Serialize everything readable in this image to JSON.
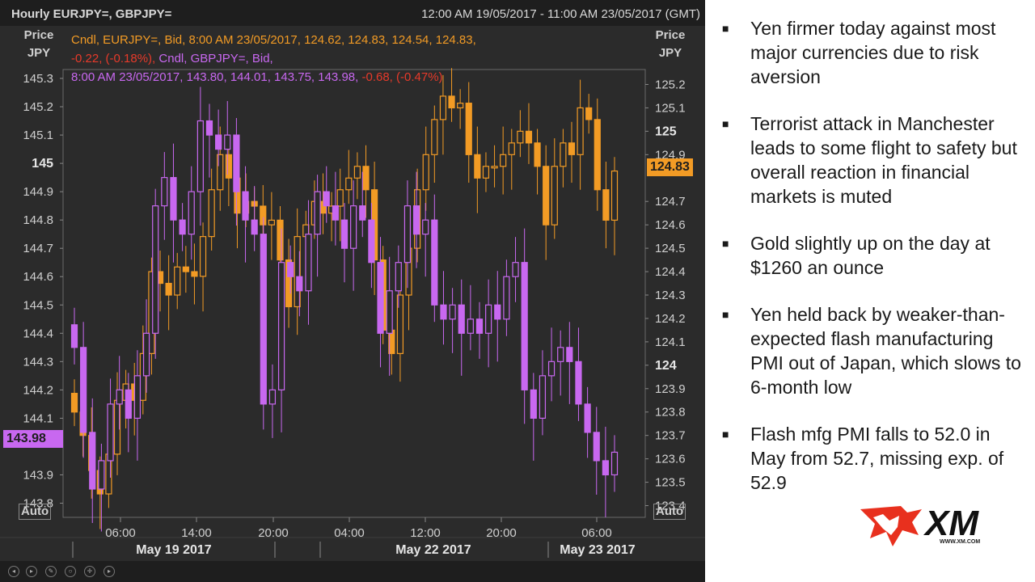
{
  "header": {
    "title": "Hourly EURJPY=, GBPJPY=",
    "range": "12:00 AM 19/05/2017 - 11:00 AM 23/05/2017 (GMT)"
  },
  "axes": {
    "left_label_line1": "Price",
    "left_label_line2": "JPY",
    "right_label_line1": "Price",
    "right_label_line2": "JPY",
    "auto_left": "Auto",
    "auto_right": "Auto",
    "left_ticks": [
      "145.3",
      "145.2",
      "145.1",
      "145",
      "144.9",
      "144.8",
      "144.7",
      "144.6",
      "144.5",
      "144.4",
      "144.3",
      "144.2",
      "144.1",
      "143.9",
      "143.8"
    ],
    "right_ticks": [
      "125.2",
      "125.1",
      "125",
      "124.9",
      "124.7",
      "124.6",
      "124.5",
      "124.4",
      "124.3",
      "124.2",
      "124.1",
      "124",
      "123.9",
      "123.8",
      "123.7",
      "123.6",
      "123.5",
      "123.4"
    ],
    "time_ticks": [
      "06:00",
      "14:00",
      "20:00",
      "04:00",
      "12:00",
      "20:00",
      "06:00"
    ],
    "date_ticks": [
      "May 19 2017",
      "May 22 2017",
      "May 23 2017"
    ]
  },
  "legend": {
    "eur_line1": "Cndl, EURJPY=, Bid, 8:00 AM 23/05/2017, 124.62, 124.83, 124.54, 124.83,",
    "eur_change": "-0.22, (-0.18%),",
    "gbp_head": "Cndl, GBPJPY=, Bid,",
    "gbp_line": "8:00 AM 23/05/2017, 143.80, 144.01, 143.75, 143.98,",
    "gbp_change": "-0.68, (-0.47%)"
  },
  "tags": {
    "eurjpy_last": "124.83",
    "gbpjpy_last": "143.98"
  },
  "bullets": [
    "Yen firmer today against most major currencies due to risk aversion",
    "Terrorist attack in Manchester leads to some flight to safety but overall reaction in financial markets is muted",
    "Gold slightly up on the day at $1260 an ounce",
    "Yen held back by weaker-than-expected flash manufacturing PMI out of Japan, which slows to 6-month low",
    "Flash mfg PMI falls to 52.0 in May from 52.7, missing exp. of 52.9"
  ],
  "logo": {
    "text": "XM",
    "url": "WWW.XM.COM"
  },
  "colors": {
    "eurjpy": "#f29b25",
    "gbpjpy": "#c868f0",
    "negative": "#e83a2a",
    "panel": "#2b2b2b"
  },
  "chart_data": [
    {
      "type": "candlestick",
      "title": "Hourly EURJPY=, GBPJPY=",
      "series": "EURJPY=",
      "axis": "right",
      "ylim": [
        123.35,
        125.25
      ],
      "last": {
        "time": "8:00 AM 23/05/2017",
        "open": 124.62,
        "high": 124.83,
        "low": 124.54,
        "close": 124.83
      },
      "closes": [
        123.8,
        123.7,
        123.55,
        123.45,
        123.62,
        123.85,
        123.92,
        123.85,
        124.05,
        124.4,
        124.35,
        124.3,
        124.42,
        124.4,
        124.38,
        124.55,
        124.75,
        124.9,
        124.8,
        124.65,
        124.7,
        124.68,
        124.6,
        124.62,
        124.45,
        124.25,
        124.55,
        124.6,
        124.7,
        124.65,
        124.68,
        124.75,
        124.8,
        124.85,
        124.75,
        124.45,
        124.15,
        124.05,
        124.3,
        124.5,
        124.75,
        124.9,
        125.05,
        125.15,
        125.1,
        125.12,
        124.9,
        124.8,
        124.85,
        124.85,
        124.9,
        124.95,
        125.0,
        124.95,
        124.85,
        124.6,
        124.85,
        124.95,
        124.9,
        125.1,
        125.05,
        124.75,
        124.62,
        124.83
      ]
    },
    {
      "type": "candlestick",
      "series": "GBPJPY=",
      "axis": "left",
      "ylim": [
        143.75,
        145.32
      ],
      "last": {
        "time": "8:00 AM 23/05/2017",
        "open": 143.8,
        "high": 144.01,
        "low": 143.75,
        "close": 143.98
      },
      "closes": [
        144.35,
        144.05,
        143.85,
        143.95,
        144.15,
        144.2,
        144.1,
        144.25,
        144.4,
        144.85,
        144.95,
        144.8,
        144.75,
        144.9,
        145.15,
        145.1,
        145.05,
        145.1,
        144.9,
        144.8,
        144.75,
        144.15,
        144.2,
        144.65,
        144.6,
        144.55,
        144.75,
        144.9,
        144.85,
        144.8,
        144.7,
        144.85,
        144.8,
        144.65,
        144.4,
        144.55,
        144.65,
        144.85,
        144.75,
        144.8,
        144.5,
        144.45,
        144.5,
        144.4,
        144.45,
        144.4,
        144.5,
        144.45,
        144.6,
        144.65,
        144.2,
        144.1,
        144.25,
        144.3,
        144.35,
        144.3,
        144.15,
        144.05,
        143.95,
        143.9,
        143.98
      ]
    }
  ]
}
